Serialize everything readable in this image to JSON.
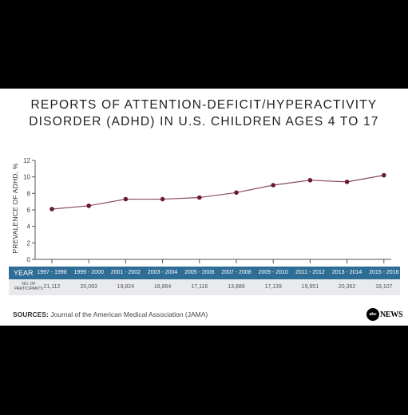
{
  "title_line1": "REPORTS OF ATTENTION-DEFICIT/HYPERACTIVITY",
  "title_line2": "DISORDER (ADHD) IN U.S. CHILDREN AGES 4 TO 17",
  "chart_data": {
    "type": "line",
    "title": "REPORTS OF ATTENTION-DEFICIT/HYPERACTIVITY DISORDER (ADHD) IN U.S. CHILDREN AGES 4 TO 17",
    "ylabel": "PREVALENCE OF ADHD, %",
    "xlabel": "",
    "categories": [
      "1997 - 1998",
      "1999 - 2000",
      "2001 - 2002",
      "2003 - 2004",
      "2005 - 2006",
      "2007 - 2008",
      "2009 - 2010",
      "2011 - 2012",
      "2013 - 2014",
      "2015 - 2016"
    ],
    "values": [
      6.1,
      6.5,
      7.3,
      7.3,
      7.5,
      8.1,
      9.0,
      9.6,
      9.4,
      10.2
    ],
    "ylim": [
      0,
      12
    ],
    "yticks": [
      0,
      2,
      4,
      6,
      8,
      10,
      12
    ],
    "grid": false,
    "line_color": "#8a4a5c",
    "marker_color": "#6b1a2e"
  },
  "table": {
    "year_header": "YEAR",
    "participants_header": "NO. OF PARTICIPANTS",
    "participants": [
      "21,112",
      "20,093",
      "19,824",
      "18,864",
      "17,116",
      "13,889",
      "17,139",
      "19,951",
      "20,362",
      "18,107"
    ]
  },
  "sources_label": "SOURCES:",
  "sources_text": "Journal of the American Medical Association (JAMA)",
  "logo": {
    "circle_text": "abc",
    "text": "NEWS"
  }
}
